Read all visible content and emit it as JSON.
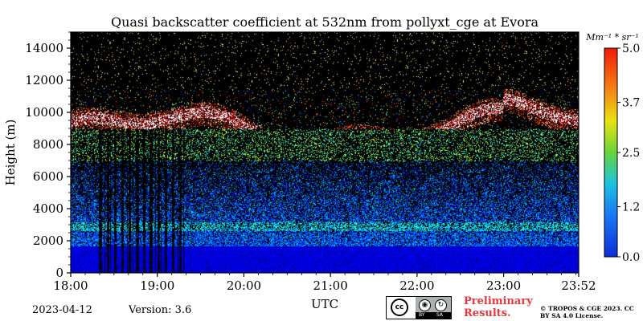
{
  "chart_data": {
    "type": "heatmap",
    "title": "Quasi backscatter coefficient at 532nm from pollyxt_cge at Evora",
    "xlabel": "UTC",
    "ylabel": "Height (m)",
    "x_ticks": [
      "18:00",
      "19:00",
      "20:00",
      "21:00",
      "22:00",
      "23:00",
      "23:52"
    ],
    "x_range_hours": [
      18.0,
      23.867
    ],
    "y_ticks": [
      0,
      2000,
      4000,
      6000,
      8000,
      10000,
      12000,
      14000
    ],
    "ylim": [
      0,
      15000
    ],
    "colorbar": {
      "label": "Mm⁻¹ * sr⁻¹",
      "ticks": [
        "0.0",
        "1.2",
        "2.5",
        "3.7",
        "5.0"
      ],
      "range": [
        0.0,
        5.0
      ],
      "colormap": "jet"
    },
    "features": [
      {
        "name": "cirrus cloud layer",
        "height_m": [
          8500,
          11500
        ],
        "time_utc": [
          "18:05",
          "23:52"
        ],
        "value": 5.0
      },
      {
        "name": "aerosol boundary layer",
        "height_m": [
          0,
          1700
        ],
        "time_utc": [
          "18:00",
          "23:52"
        ],
        "value": 0.3
      },
      {
        "name": "signal gap columns",
        "time_utc": [
          "18:20",
          "19:20"
        ]
      }
    ],
    "grid": false,
    "legend": "colorbar-right"
  },
  "footer": {
    "date": "2023-04-12",
    "version": "Version: 3.6",
    "preliminary": "Preliminary Results.",
    "copyright": "© TROPOS & CGE 2023. CC BY SA 4.0 License.",
    "license_icons": [
      "cc-icon",
      "by-icon",
      "sa-icon"
    ],
    "license_strip": [
      "BY",
      "SA"
    ]
  }
}
